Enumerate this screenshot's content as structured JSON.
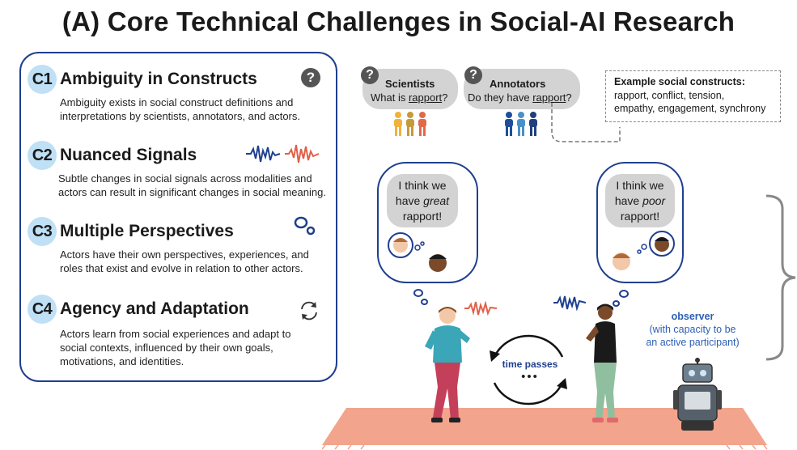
{
  "title": "(A) Core Technical Challenges in Social-AI Research",
  "challenges": [
    {
      "badge": "C1",
      "title": "Ambiguity in Constructs",
      "desc": "Ambiguity exists in social construct definitions and interpretations by scientists, annotators, and actors.",
      "icon": "question-icon"
    },
    {
      "badge": "C2",
      "title": "Nuanced Signals",
      "desc": "Subtle changes in social signals across modalities and actors can result in significant changes in social meaning.",
      "icon": "waveform-icon"
    },
    {
      "badge": "C3",
      "title": "Multiple Perspectives",
      "desc": "Actors have their own perspectives, experiences, and roles that exist and evolve in relation to other actors.",
      "icon": "thought-bubble-icon"
    },
    {
      "badge": "C4",
      "title": "Agency and Adaptation",
      "desc": "Actors learn from social experiences and adapt to social contexts, influenced by their own goals, motivations, and identities.",
      "icon": "refresh-icon"
    }
  ],
  "scientists": {
    "label": "Scientists",
    "question_pre": "What is ",
    "question_word": "rapport",
    "question_post": "?"
  },
  "annotators": {
    "label": "Annotators",
    "question_pre": "Do they have ",
    "question_word": "rapport",
    "question_post": "?"
  },
  "constructs": {
    "heading": "Example social constructs:",
    "line1": "rapport, conflict, tension,",
    "line2": "empathy, engagement, synchrony"
  },
  "left_thought": {
    "line1": "I think we",
    "line2_pre": "have ",
    "line2_em": "great",
    "line3": "rapport!"
  },
  "right_thought": {
    "line1": "I think we",
    "line2_pre": "have ",
    "line2_em": "poor",
    "line3": "rapport!"
  },
  "time": {
    "label": "time passes",
    "dots": "•••"
  },
  "observer": {
    "label": "observer",
    "sub1": "(with capacity to be",
    "sub2": "an active participant)"
  },
  "colors": {
    "accent": "#1f3f8f",
    "badge": "#bfe0f5",
    "bubble": "#d3d3d3",
    "rug": "#f2a48c",
    "observer_text": "#2d5fb3"
  }
}
